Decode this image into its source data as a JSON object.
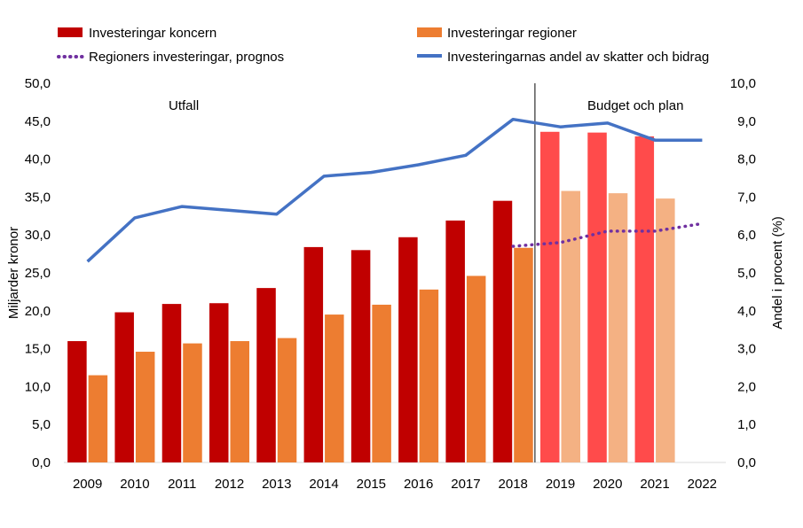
{
  "chart_data": {
    "type": "bar",
    "categories": [
      "2009",
      "2010",
      "2011",
      "2012",
      "2013",
      "2014",
      "2015",
      "2016",
      "2017",
      "2018",
      "2019",
      "2020",
      "2021",
      "2022"
    ],
    "series": [
      {
        "name": "Investeringar koncern",
        "axis": "left",
        "kind": "bar",
        "color": "#C00000",
        "forecast_color": "#FF4B4B",
        "values": [
          16.0,
          19.8,
          20.9,
          21.0,
          23.0,
          28.4,
          28.0,
          29.7,
          31.9,
          34.5,
          43.6,
          43.5,
          43.0,
          null
        ]
      },
      {
        "name": "Investeringar regioner",
        "axis": "left",
        "kind": "bar",
        "color": "#ED7D31",
        "forecast_color": "#F4B183",
        "values": [
          11.5,
          14.6,
          15.7,
          16.0,
          16.4,
          19.5,
          20.8,
          22.8,
          24.6,
          28.3,
          35.8,
          35.5,
          34.8,
          null
        ]
      },
      {
        "name": "Regioners investeringar, prognos",
        "axis": "right",
        "kind": "dotted-line",
        "color": "#7030A0",
        "values": [
          null,
          null,
          null,
          null,
          null,
          null,
          null,
          null,
          null,
          5.7,
          5.8,
          6.1,
          6.1,
          6.3
        ]
      },
      {
        "name": "Investeringarnas andel av skatter och bidrag",
        "axis": "right",
        "kind": "line",
        "color": "#4472C4",
        "values": [
          5.3,
          6.45,
          6.75,
          6.65,
          6.55,
          7.55,
          7.65,
          7.85,
          8.1,
          9.05,
          8.85,
          8.95,
          8.5,
          8.5
        ]
      }
    ],
    "forecast_start_index": 10,
    "left_axis": {
      "label": "Miljarder kronor",
      "min": 0,
      "max": 50,
      "step": 5,
      "tick_labels": [
        "0,0",
        "5,0",
        "10,0",
        "15,0",
        "20,0",
        "25,0",
        "30,0",
        "35,0",
        "40,0",
        "45,0",
        "50,0"
      ]
    },
    "right_axis": {
      "label": "Andel i procent (%)",
      "min": 0,
      "max": 10,
      "step": 1,
      "tick_labels": [
        "0,0",
        "1,0",
        "2,0",
        "3,0",
        "4,0",
        "5,0",
        "6,0",
        "7,0",
        "8,0",
        "9,0",
        "10,0"
      ]
    },
    "annotations": {
      "left": "Utfall",
      "right": "Budget och plan"
    },
    "legend_position": "top"
  }
}
